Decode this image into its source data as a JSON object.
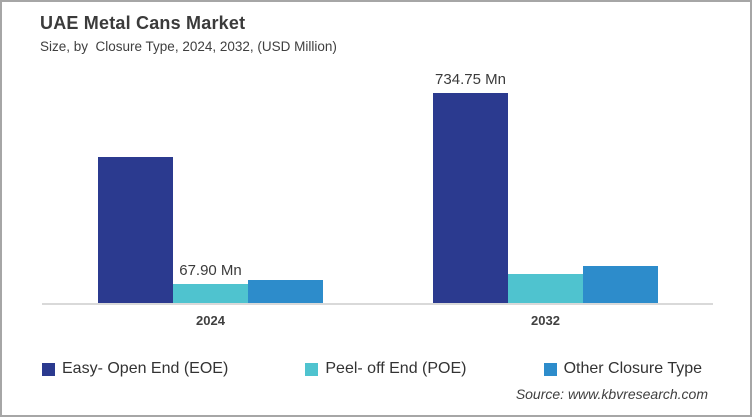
{
  "card": {
    "title": "UAE Metal Cans Market",
    "subtitle": "Size, by  Closure Type, 2024, 2032, (USD Million)",
    "source": "Source: www.kbvresearch.com"
  },
  "colors": {
    "eoe_navy": "#2B3A8F",
    "poe_teal": "#4FC3CF",
    "other_blue": "#2D8CCB",
    "axis_line": "#D9D9D9",
    "card_border": "#A6A6A6",
    "text": "#3F3F3F"
  },
  "chart_data": {
    "type": "bar",
    "title": "UAE Metal Cans Market",
    "subtitle": "Size, by Closure Type, 2024, 2032, (USD Million)",
    "unit": "USD Million",
    "categories": [
      "2024",
      "2032"
    ],
    "series": [
      {
        "name": "Easy- Open End (EOE)",
        "color": "#2B3A8F",
        "values": [
          510,
          734.75
        ]
      },
      {
        "name": "Peel- off End (POE)",
        "color": "#4FC3CF",
        "values": [
          67.9,
          100
        ]
      },
      {
        "name": "Other Closure Type",
        "color": "#2D8CCB",
        "values": [
          80,
          131
        ]
      }
    ],
    "data_labels": [
      {
        "text": "734.75 Mn",
        "series_index": 0,
        "category_index": 1
      },
      {
        "text": "67.90 Mn",
        "series_index": 1,
        "category_index": 0
      }
    ],
    "labeled_values_note": "only 734.75 Mn and 67.90 Mn are labeled on the chart; other values estimated from bar heights",
    "ylim": [
      0,
      835
    ],
    "grid": false,
    "legend_position": "bottom"
  }
}
